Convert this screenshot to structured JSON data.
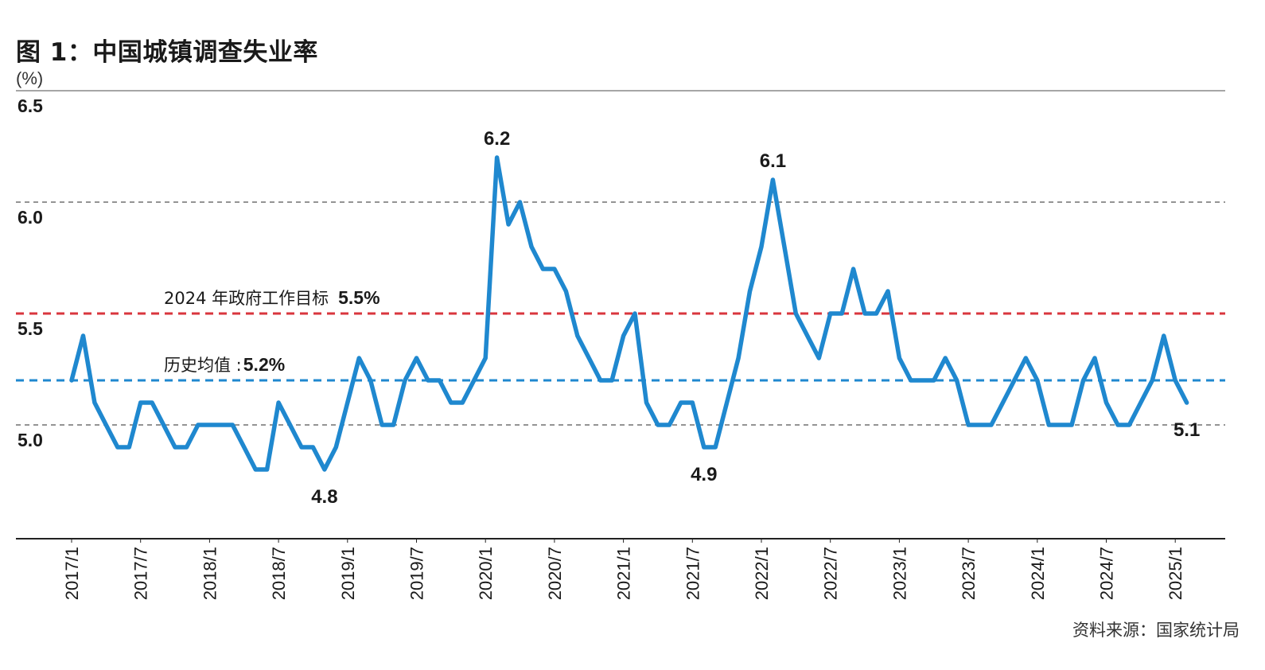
{
  "title": "图 1：中国城镇调查失业率",
  "unit_label": "(%)",
  "source": "资料来源：国家统计局",
  "chart_data": {
    "type": "line",
    "title": "图 1：中国城镇调查失业率",
    "ylabel": "(%)",
    "ylim": [
      4.5,
      6.5
    ],
    "yticks": [
      5.0,
      5.5,
      6.0,
      6.5
    ],
    "ytick_labels": [
      "5.0",
      "5.5",
      "6.0",
      "6.5"
    ],
    "grid_dashed_at": [
      5.0,
      6.0
    ],
    "xtick_labels": [
      "2017/1",
      "2017/7",
      "2018/1",
      "2018/7",
      "2019/1",
      "2019/7",
      "2020/1",
      "2020/7",
      "2021/1",
      "2021/7",
      "2022/1",
      "2022/7",
      "2023/1",
      "2023/7",
      "2024/1",
      "2024/7",
      "2025/1"
    ],
    "series": [
      {
        "name": "城镇调查失业率",
        "color": "#1f88cf",
        "values": [
          5.2,
          5.4,
          5.1,
          5.0,
          4.9,
          4.9,
          5.1,
          5.1,
          5.0,
          4.9,
          4.9,
          5.0,
          5.0,
          5.0,
          5.0,
          4.9,
          4.8,
          4.8,
          5.1,
          5.0,
          4.9,
          4.9,
          4.8,
          4.9,
          5.1,
          5.3,
          5.2,
          5.0,
          5.0,
          5.2,
          5.3,
          5.2,
          5.2,
          5.1,
          5.1,
          5.2,
          5.3,
          6.2,
          5.9,
          6.0,
          5.8,
          5.7,
          5.7,
          5.6,
          5.4,
          5.3,
          5.2,
          5.2,
          5.4,
          5.5,
          5.1,
          5.0,
          5.0,
          5.1,
          5.1,
          4.9,
          4.9,
          5.1,
          5.3,
          5.6,
          5.8,
          6.1,
          5.8,
          5.5,
          5.4,
          5.3,
          5.5,
          5.5,
          5.7,
          5.5,
          5.5,
          5.6,
          5.3,
          5.2,
          5.2,
          5.2,
          5.3,
          5.2,
          5.0,
          5.0,
          5.0,
          5.1,
          5.2,
          5.3,
          5.2,
          5.0,
          5.0,
          5.0,
          5.2,
          5.3,
          5.1,
          5.0,
          5.0,
          5.1,
          5.2,
          5.4,
          5.2,
          5.1
        ]
      }
    ],
    "reference_lines": [
      {
        "label": "2024 年政府工作目标",
        "value_label": "5.5%",
        "value": 5.5,
        "color": "#d9363e"
      },
      {
        "label": "历史均值 :",
        "value_label": "5.2%",
        "value": 5.2,
        "color": "#1f88cf"
      }
    ],
    "annotations": [
      {
        "text": "6.2",
        "value": 6.2
      },
      {
        "text": "6.1",
        "value": 6.1
      },
      {
        "text": "4.8",
        "value": 4.8
      },
      {
        "text": "4.9",
        "value": 4.9
      },
      {
        "text": "5.1",
        "value": 5.1
      }
    ]
  }
}
